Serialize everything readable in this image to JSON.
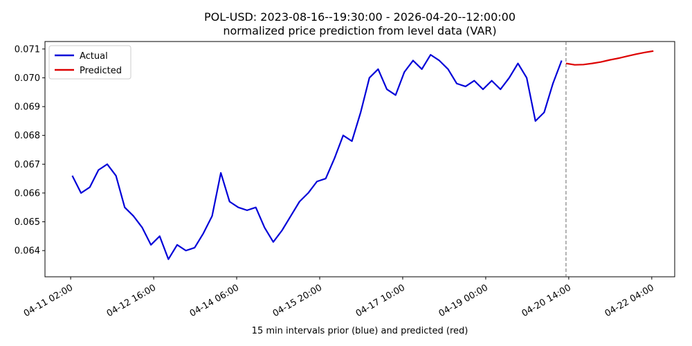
{
  "chart_data": {
    "type": "line",
    "title": "POL-USD: 2023-08-16--19:30:00 - 2026-04-20--12:00:00",
    "subtitle": "normalized price prediction from level data (VAR)",
    "x_label": "15 min intervals prior (blue) and predicted (red)",
    "xlim": [
      "04-10 14:15",
      "04-22 14:30"
    ],
    "xticks": [
      "04-11 02:00",
      "04-12 16:00",
      "04-14 06:00",
      "04-15 20:00",
      "04-17 10:00",
      "04-19 00:00",
      "04-20 14:00",
      "04-22 04:00"
    ],
    "ylim": [
      0.06309,
      0.07126
    ],
    "yticks": [
      {
        "value": 0.064,
        "label": "0.064"
      },
      {
        "value": 0.065,
        "label": "0.065"
      },
      {
        "value": 0.066,
        "label": "0.066"
      },
      {
        "value": 0.067,
        "label": "0.067"
      },
      {
        "value": 0.068,
        "label": "0.068"
      },
      {
        "value": 0.069,
        "label": "0.069"
      },
      {
        "value": 0.07,
        "label": "0.070"
      },
      {
        "value": 0.071,
        "label": "0.071"
      }
    ],
    "vline": "04-20 12:45",
    "legend": "upper left",
    "series": [
      {
        "name": "Actual",
        "color": "#0000d8",
        "x": [
          "04-11 02:45",
          "04-11 06:45",
          "04-11 10:45",
          "04-11 14:45",
          "04-11 18:45",
          "04-11 22:45",
          "04-12 02:45",
          "04-12 06:45",
          "04-12 10:45",
          "04-12 14:45",
          "04-12 18:45",
          "04-12 22:45",
          "04-13 02:45",
          "04-13 06:45",
          "04-13 10:45",
          "04-13 14:45",
          "04-13 18:45",
          "04-13 22:45",
          "04-14 02:45",
          "04-14 06:45",
          "04-14 10:45",
          "04-14 14:45",
          "04-14 18:45",
          "04-14 22:45",
          "04-15 02:45",
          "04-15 06:45",
          "04-15 10:45",
          "04-15 14:45",
          "04-15 18:45",
          "04-15 22:45",
          "04-16 02:45",
          "04-16 06:45",
          "04-16 10:45",
          "04-16 14:45",
          "04-16 18:45",
          "04-16 22:45",
          "04-17 02:45",
          "04-17 06:45",
          "04-17 10:45",
          "04-17 14:45",
          "04-17 18:45",
          "04-17 22:45",
          "04-18 02:45",
          "04-18 06:45",
          "04-18 10:45",
          "04-18 14:45",
          "04-18 18:45",
          "04-18 22:45",
          "04-19 02:45",
          "04-19 06:45",
          "04-19 10:45",
          "04-19 14:45",
          "04-19 18:45",
          "04-19 22:45",
          "04-20 02:45",
          "04-20 06:45",
          "04-20 10:45"
        ],
        "values": [
          0.0666,
          0.066,
          0.0662,
          0.0668,
          0.067,
          0.0666,
          0.0655,
          0.0652,
          0.0648,
          0.0642,
          0.0645,
          0.0637,
          0.0642,
          0.064,
          0.0641,
          0.0646,
          0.0652,
          0.0667,
          0.0657,
          0.0655,
          0.0654,
          0.0655,
          0.0648,
          0.0643,
          0.0647,
          0.0652,
          0.0657,
          0.066,
          0.0664,
          0.0665,
          0.0672,
          0.068,
          0.0678,
          0.0688,
          0.07,
          0.0703,
          0.0696,
          0.0694,
          0.0702,
          0.0706,
          0.0703,
          0.0708,
          0.0706,
          0.0703,
          0.0698,
          0.0697,
          0.0699,
          0.0696,
          0.0699,
          0.0696,
          0.07,
          0.0705,
          0.07,
          0.0685,
          0.0688,
          0.0698,
          0.0706
        ]
      },
      {
        "name": "Predicted",
        "color": "#dd0000",
        "x": [
          "04-20 12:45",
          "04-20 16:45",
          "04-20 20:45",
          "04-21 00:45",
          "04-21 04:45",
          "04-21 08:45",
          "04-21 12:45",
          "04-21 16:45",
          "04-21 20:45",
          "04-22 00:45",
          "04-22 04:45"
        ],
        "values": [
          0.0705,
          0.07045,
          0.07046,
          0.0705,
          0.07055,
          0.07062,
          0.07068,
          0.07075,
          0.07082,
          0.07088,
          0.07093
        ]
      }
    ]
  }
}
